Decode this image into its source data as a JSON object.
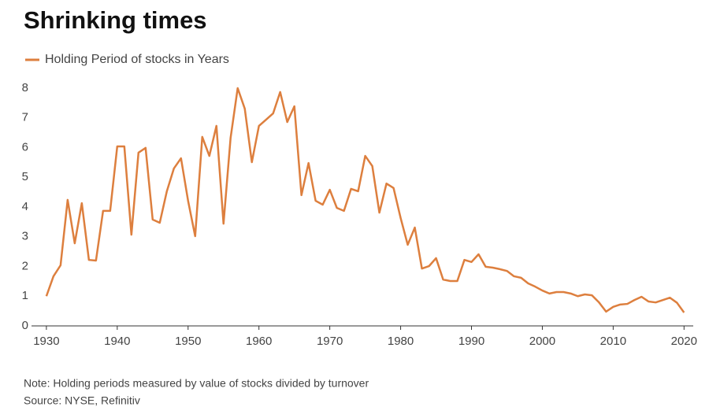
{
  "chart_data": {
    "type": "line",
    "title": "Shrinking times",
    "note": "Note: Holding periods measured by value of stocks divided by turnover",
    "source": "Source: NYSE, Refinitiv",
    "x": [
      1930,
      1931,
      1932,
      1933,
      1934,
      1935,
      1936,
      1937,
      1938,
      1939,
      1940,
      1941,
      1942,
      1943,
      1944,
      1945,
      1946,
      1947,
      1948,
      1949,
      1950,
      1951,
      1952,
      1953,
      1954,
      1955,
      1956,
      1957,
      1958,
      1959,
      1960,
      1961,
      1962,
      1963,
      1964,
      1965,
      1966,
      1967,
      1968,
      1969,
      1970,
      1971,
      1972,
      1973,
      1974,
      1975,
      1976,
      1977,
      1978,
      1979,
      1980,
      1981,
      1982,
      1983,
      1984,
      1985,
      1986,
      1987,
      1988,
      1989,
      1990,
      1991,
      1992,
      1993,
      1994,
      1995,
      1996,
      1997,
      1998,
      1999,
      2000,
      2001,
      2002,
      2003,
      2004,
      2005,
      2006,
      2007,
      2008,
      2009,
      2010,
      2011,
      2012,
      2013,
      2014,
      2015,
      2016,
      2017,
      2018,
      2019,
      2020
    ],
    "series": [
      {
        "name": "Holding Period of stocks in Years",
        "color": "#dd7f3e",
        "values": [
          1.0,
          1.67,
          2.04,
          4.24,
          2.78,
          4.13,
          2.22,
          2.2,
          3.87,
          3.87,
          6.04,
          6.04,
          3.07,
          5.83,
          5.99,
          3.58,
          3.47,
          4.53,
          5.3,
          5.64,
          4.21,
          3.02,
          6.36,
          5.72,
          6.73,
          3.44,
          6.33,
          8.0,
          7.31,
          5.51,
          6.73,
          6.94,
          7.15,
          7.87,
          6.86,
          7.39,
          4.4,
          5.48,
          4.21,
          4.08,
          4.58,
          3.97,
          3.87,
          4.61,
          4.53,
          5.72,
          5.38,
          3.81,
          4.79,
          4.64,
          3.63,
          2.73,
          3.31,
          1.93,
          2.01,
          2.28,
          1.56,
          1.51,
          1.51,
          2.22,
          2.15,
          2.41,
          1.99,
          1.96,
          1.91,
          1.85,
          1.67,
          1.62,
          1.43,
          1.32,
          1.19,
          1.09,
          1.14,
          1.14,
          1.09,
          1.0,
          1.06,
          1.03,
          0.79,
          0.48,
          0.64,
          0.72,
          0.74,
          0.87,
          0.98,
          0.82,
          0.79,
          0.87,
          0.95,
          0.78,
          0.45
        ]
      }
    ],
    "xlim": [
      1927.9,
      2021.3
    ],
    "xticks": [
      1930,
      1940,
      1950,
      1960,
      1970,
      1980,
      1990,
      2000,
      2010,
      2020
    ],
    "ylim": [
      0,
      8
    ],
    "yticks": [
      0,
      1,
      2,
      3,
      4,
      5,
      6,
      7,
      8
    ]
  }
}
